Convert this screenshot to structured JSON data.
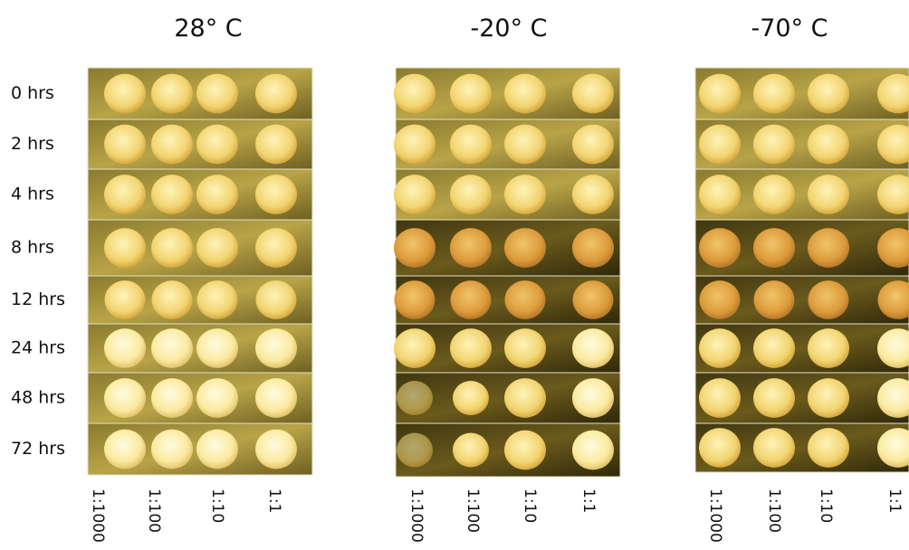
{
  "time_labels": [
    "0 hrs",
    "2 hrs",
    "4 hrs",
    "8 hrs",
    "12 hrs",
    "24 hrs",
    "48 hrs",
    "72 hrs"
  ],
  "panels": [
    {
      "title": "28° C",
      "dilutions": [
        "1:1000",
        "1:100",
        "1:10",
        "1:1"
      ]
    },
    {
      "title": "-20° C",
      "dilutions": [
        "1:1000",
        "1:100",
        "1:10",
        "1:1"
      ]
    },
    {
      "title": "-70° C",
      "dilutions": [
        "1:1000",
        "1:100",
        "1:10",
        "1:1"
      ]
    }
  ]
}
